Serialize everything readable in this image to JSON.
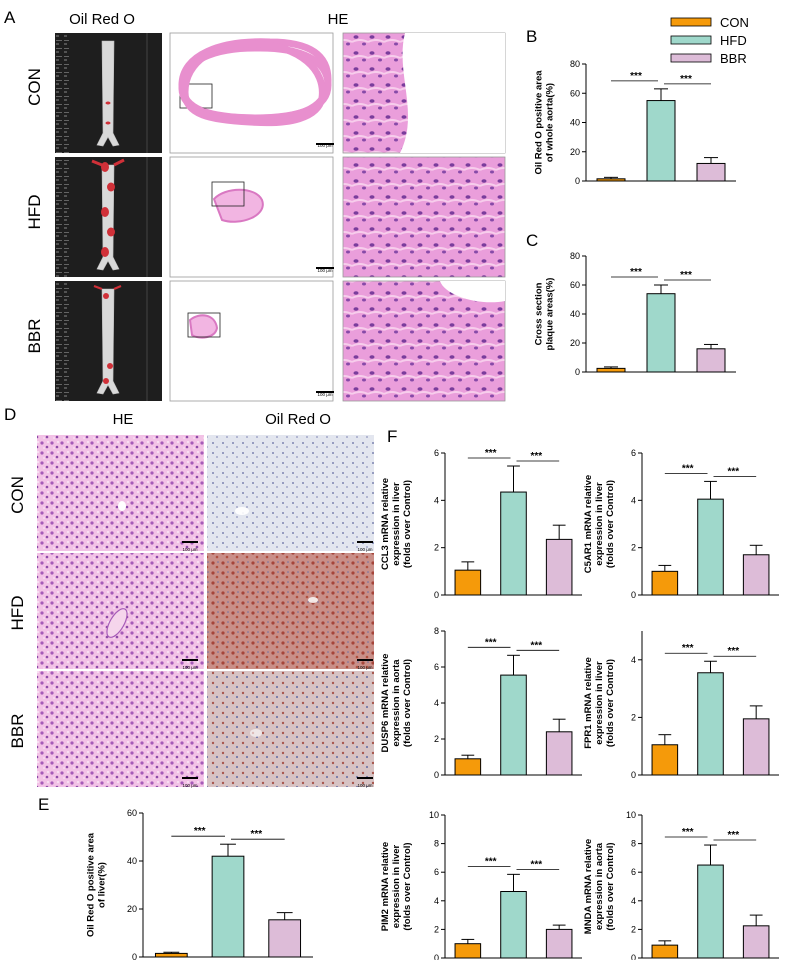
{
  "panels": {
    "A": "A",
    "B": "B",
    "C": "C",
    "D": "D",
    "E": "E",
    "F": "F"
  },
  "panel_a": {
    "headers": [
      "Oil Red O",
      "HE"
    ],
    "rows": [
      "CON",
      "HFD",
      "BBR"
    ],
    "scale_bar": "100 μm"
  },
  "panel_d": {
    "headers": [
      "HE",
      "Oil Red O"
    ],
    "rows": [
      "CON",
      "HFD",
      "BBR"
    ],
    "scale_bar": "100 μm"
  },
  "legend": {
    "items": [
      "CON",
      "HFD",
      "BBR"
    ]
  },
  "colors": {
    "CON": "#F59A0A",
    "HFD": "#9FD8CB",
    "BBR": "#DDBCD8",
    "plaque": "#d03038",
    "he_pink": "#e88fce",
    "orange_dark": "#f08c00"
  },
  "chart_data": [
    {
      "id": "B",
      "type": "bar",
      "categories": [
        "CON",
        "HFD",
        "BBR"
      ],
      "values": [
        1.5,
        55,
        12
      ],
      "errors": [
        1,
        8,
        4
      ],
      "ylim": [
        0,
        80
      ],
      "yticks": [
        0,
        20,
        40,
        60,
        80
      ],
      "ylabel_lines": [
        "Oil Red O positive area",
        "of whole aorta(%)"
      ],
      "significance": [
        "***",
        "***"
      ]
    },
    {
      "id": "C",
      "type": "bar",
      "categories": [
        "CON",
        "HFD",
        "BBR"
      ],
      "values": [
        2.5,
        54,
        16
      ],
      "errors": [
        1,
        6,
        3
      ],
      "ylim": [
        0,
        80
      ],
      "yticks": [
        0,
        20,
        40,
        60,
        80
      ],
      "ylabel_lines": [
        "Cross section",
        "plaque areas(%)"
      ],
      "significance": [
        "***",
        "***"
      ]
    },
    {
      "id": "E",
      "type": "bar",
      "categories": [
        "CON",
        "HFD",
        "BBR"
      ],
      "values": [
        1.5,
        42,
        15.5
      ],
      "errors": [
        0.5,
        5,
        3
      ],
      "ylim": [
        0,
        60
      ],
      "yticks": [
        0,
        20,
        40,
        60
      ],
      "ylabel_lines": [
        "Oil Red O positive area",
        "of liver(%)"
      ],
      "significance": [
        "***",
        "***"
      ]
    },
    {
      "id": "F1",
      "type": "bar",
      "categories": [
        "CON",
        "HFD",
        "BBR"
      ],
      "values": [
        1.05,
        4.35,
        2.35
      ],
      "errors": [
        0.35,
        1.1,
        0.6
      ],
      "ylim": [
        0,
        6
      ],
      "yticks": [
        0,
        2,
        4,
        6
      ],
      "ylabel_lines": [
        "CCL3 mRNA relative",
        "expression in liver",
        "(folds over Control)"
      ],
      "significance": [
        "***",
        "***"
      ]
    },
    {
      "id": "F2",
      "type": "bar",
      "categories": [
        "CON",
        "HFD",
        "BBR"
      ],
      "values": [
        1.0,
        4.05,
        1.7
      ],
      "errors": [
        0.25,
        0.75,
        0.4
      ],
      "ylim": [
        0,
        6
      ],
      "yticks": [
        0,
        2,
        4,
        6
      ],
      "ylabel_lines": [
        "C5AR1 mRNA relative",
        "expression in liver",
        "(folds over Control)"
      ],
      "significance": [
        "***",
        "***"
      ]
    },
    {
      "id": "F3",
      "type": "bar",
      "categories": [
        "CON",
        "HFD",
        "BBR"
      ],
      "values": [
        0.9,
        5.55,
        2.4
      ],
      "errors": [
        0.2,
        1.1,
        0.7
      ],
      "ylim": [
        0,
        8
      ],
      "yticks": [
        0,
        2,
        4,
        6,
        8
      ],
      "ylabel_lines": [
        "DUSP6 mRNA relative",
        "expression in aorta",
        "(folds over Control)"
      ],
      "significance": [
        "***",
        "***"
      ]
    },
    {
      "id": "F4",
      "type": "bar",
      "categories": [
        "CON",
        "HFD",
        "BBR"
      ],
      "values": [
        1.05,
        3.55,
        1.95
      ],
      "errors": [
        0.35,
        0.4,
        0.45
      ],
      "ylim": [
        0,
        5
      ],
      "yticks": [
        0,
        2,
        4
      ],
      "ylabel_lines": [
        "FPR1 mRNA relative",
        "expression in liver",
        "(folds over Control)"
      ],
      "significance": [
        "***",
        "***"
      ]
    },
    {
      "id": "F5",
      "type": "bar",
      "categories": [
        "CON",
        "HFD",
        "BBR"
      ],
      "values": [
        1.0,
        4.65,
        2.0
      ],
      "errors": [
        0.3,
        1.2,
        0.3
      ],
      "ylim": [
        0,
        10
      ],
      "yticks": [
        0,
        2,
        4,
        6,
        8,
        10
      ],
      "ylabel_lines": [
        "PIM2 mRNA relative",
        "expression in liver",
        "(folds over Control)"
      ],
      "significance": [
        "***",
        "***"
      ]
    },
    {
      "id": "F6",
      "type": "bar",
      "categories": [
        "CON",
        "HFD",
        "BBR"
      ],
      "values": [
        0.9,
        6.5,
        2.25
      ],
      "errors": [
        0.3,
        1.4,
        0.75
      ],
      "ylim": [
        0,
        10
      ],
      "yticks": [
        0,
        2,
        4,
        6,
        8,
        10
      ],
      "ylabel_lines": [
        "MNDA mRNA relative",
        "expression in aorta",
        "(folds over Control)"
      ],
      "significance": [
        "***",
        "***"
      ]
    }
  ]
}
